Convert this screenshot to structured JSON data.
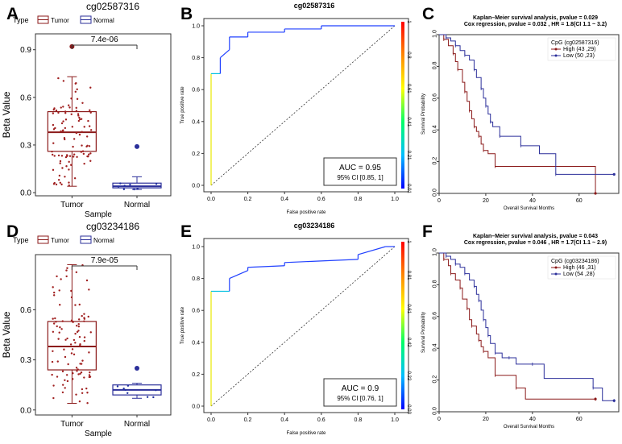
{
  "colors": {
    "tumor": "#8b1a1a",
    "normal": "#2b2f9a",
    "tumor_point": "#a02020",
    "normal_point": "#2030a0",
    "roc_colors": [
      "#0000ff",
      "#00bfff",
      "#00ff66",
      "#ffff00",
      "#ff8800",
      "#ff0000"
    ]
  },
  "panels": {
    "A": "A",
    "B": "B",
    "C": "C",
    "D": "D",
    "E": "E",
    "F": "F"
  },
  "chart_data": [
    {
      "id": "A",
      "type": "box",
      "title": "cg02587316",
      "legend_title": "Type",
      "legend": [
        "Tumor",
        "Normal"
      ],
      "xlabel": "Sample",
      "ylabel": "Beta Value",
      "categories": [
        "Tumor",
        "Normal"
      ],
      "yticks": [
        "0.0",
        "0.3",
        "0.6",
        "0.9"
      ],
      "ylim": [
        -0.02,
        1.0
      ],
      "pvalue": "7.4e-06",
      "boxes": [
        {
          "group": "Tumor",
          "min": 0.04,
          "q1": 0.26,
          "median": 0.38,
          "q3": 0.51,
          "max": 0.73,
          "outliers": [
            0.92
          ]
        },
        {
          "group": "Normal",
          "min": 0.02,
          "q1": 0.03,
          "median": 0.04,
          "q3": 0.06,
          "max": 0.1,
          "outliers": [
            0.29
          ]
        }
      ]
    },
    {
      "id": "B",
      "type": "line",
      "title": "cg02587316",
      "xlabel": "False positive rate",
      "ylabel": "True positive rate",
      "ticks": [
        "0.0",
        "0.2",
        "0.4",
        "0.6",
        "0.8",
        "1.0"
      ],
      "colorbar_ticks": [
        "0.01",
        "0.21",
        "0.41",
        "0.61",
        "0.8",
        "1"
      ],
      "roc": {
        "fpr": [
          0,
          0,
          0.05,
          0.05,
          0.1,
          0.1,
          0.2,
          0.2,
          0.4,
          0.4,
          0.6,
          0.6,
          1.0
        ],
        "tpr": [
          0,
          0.7,
          0.7,
          0.8,
          0.85,
          0.93,
          0.93,
          0.96,
          0.96,
          0.98,
          0.98,
          1.0,
          1.0
        ]
      },
      "auc_text": "AUC = 0.95",
      "ci_text": "95% CI [0.85, 1]"
    },
    {
      "id": "C",
      "type": "line",
      "title": "Kaplan–Meier survival analysis, pvalue = 0.029",
      "subtitle": "Cox regression,  pvalue = 0.032 , HR = 1.8(CI 1.1 ~ 3.2)",
      "xlabel": "Overall Survival Months",
      "ylabel": "Survival Probability",
      "xticks": [
        "0",
        "20",
        "40",
        "60"
      ],
      "yticks": [
        "0.0",
        "0.2",
        "0.4",
        "0.6",
        "0.8",
        "1.0"
      ],
      "xlim": [
        0,
        77
      ],
      "legend_title": "CpG (cg02587316)",
      "series": [
        {
          "name": "High (43 ,29)",
          "color": "#8b1a1a",
          "t": [
            0,
            2,
            4,
            6,
            7,
            8,
            10,
            11,
            12,
            13,
            14,
            15,
            16,
            17,
            18,
            19,
            21,
            24,
            67
          ],
          "s": [
            1.0,
            0.97,
            0.93,
            0.88,
            0.83,
            0.78,
            0.7,
            0.64,
            0.58,
            0.52,
            0.47,
            0.42,
            0.39,
            0.36,
            0.31,
            0.27,
            0.25,
            0.17,
            0.0
          ]
        },
        {
          "name": "Low (50 ,23)",
          "color": "#2b2f9a",
          "t": [
            0,
            3,
            5,
            7,
            9,
            11,
            13,
            15,
            16,
            18,
            19,
            20,
            21,
            22,
            23,
            26,
            30,
            35,
            43,
            50,
            75
          ],
          "s": [
            1.0,
            0.98,
            0.96,
            0.93,
            0.9,
            0.87,
            0.84,
            0.78,
            0.73,
            0.66,
            0.6,
            0.55,
            0.5,
            0.45,
            0.42,
            0.36,
            0.36,
            0.3,
            0.25,
            0.12,
            0.12
          ]
        }
      ]
    },
    {
      "id": "D",
      "type": "box",
      "title": "cg03234186",
      "legend_title": "Type",
      "legend": [
        "Tumor",
        "Normal"
      ],
      "xlabel": "Sample",
      "ylabel": "Beta Value",
      "categories": [
        "Tumor",
        "Normal"
      ],
      "yticks": [
        "0.0",
        "0.3",
        "0.6"
      ],
      "ylim": [
        -0.03,
        0.93
      ],
      "pvalue": "7.9e-05",
      "boxes": [
        {
          "group": "Tumor",
          "min": 0.04,
          "q1": 0.24,
          "median": 0.38,
          "q3": 0.53,
          "max": 0.87,
          "outliers": []
        },
        {
          "group": "Normal",
          "min": 0.07,
          "q1": 0.09,
          "median": 0.12,
          "q3": 0.15,
          "max": 0.16,
          "outliers": [
            0.25
          ]
        }
      ]
    },
    {
      "id": "E",
      "type": "line",
      "title": "cg03234186",
      "xlabel": "False positive rate",
      "ylabel": "True positive rate",
      "ticks": [
        "0.0",
        "0.2",
        "0.4",
        "0.6",
        "0.8",
        "1.0"
      ],
      "colorbar_ticks": [
        "0.03",
        "0.22",
        "0.42",
        "0.61",
        "0.81",
        "1"
      ],
      "roc": {
        "fpr": [
          0,
          0,
          0.1,
          0.1,
          0.2,
          0.2,
          0.4,
          0.4,
          0.8,
          0.8,
          0.95,
          1.0
        ],
        "tpr": [
          0,
          0.72,
          0.72,
          0.8,
          0.85,
          0.87,
          0.88,
          0.9,
          0.92,
          0.95,
          1.0,
          1.0
        ]
      },
      "auc_text": "AUC = 0.9",
      "ci_text": "95% CI [0.76, 1]"
    },
    {
      "id": "F",
      "type": "line",
      "title": "Kaplan–Meier survival analysis, pvalue = 0.043",
      "subtitle": "Cox regression,  pvalue = 0.046 , HR = 1.7(CI 1.1 ~ 2.9)",
      "xlabel": "Overall Survival Months",
      "ylabel": "Survival Probability",
      "xticks": [
        "0",
        "20",
        "40",
        "60"
      ],
      "yticks": [
        "0.0",
        "0.2",
        "0.4",
        "0.6",
        "0.8",
        "1.0"
      ],
      "xlim": [
        0,
        77
      ],
      "legend_title": "CpG (cg03234186)",
      "series": [
        {
          "name": "High (46 ,31)",
          "color": "#8b1a1a",
          "t": [
            0,
            2,
            4,
            5,
            7,
            9,
            10,
            12,
            13,
            14,
            16,
            17,
            18,
            19,
            21,
            24,
            28,
            33,
            37,
            67
          ],
          "s": [
            1.0,
            0.96,
            0.92,
            0.87,
            0.83,
            0.78,
            0.71,
            0.65,
            0.58,
            0.54,
            0.49,
            0.45,
            0.41,
            0.38,
            0.34,
            0.23,
            0.23,
            0.15,
            0.08,
            0.08
          ]
        },
        {
          "name": "Low (54 ,28)",
          "color": "#2b2f9a",
          "t": [
            0,
            3,
            5,
            7,
            9,
            11,
            13,
            15,
            16,
            17,
            18,
            19,
            20,
            21,
            22,
            24,
            27,
            30,
            33,
            40,
            45,
            66,
            70,
            75
          ],
          "s": [
            1.0,
            0.98,
            0.96,
            0.93,
            0.91,
            0.87,
            0.83,
            0.79,
            0.74,
            0.7,
            0.64,
            0.58,
            0.53,
            0.48,
            0.43,
            0.37,
            0.34,
            0.34,
            0.3,
            0.3,
            0.21,
            0.15,
            0.07,
            0.07
          ]
        }
      ]
    }
  ]
}
